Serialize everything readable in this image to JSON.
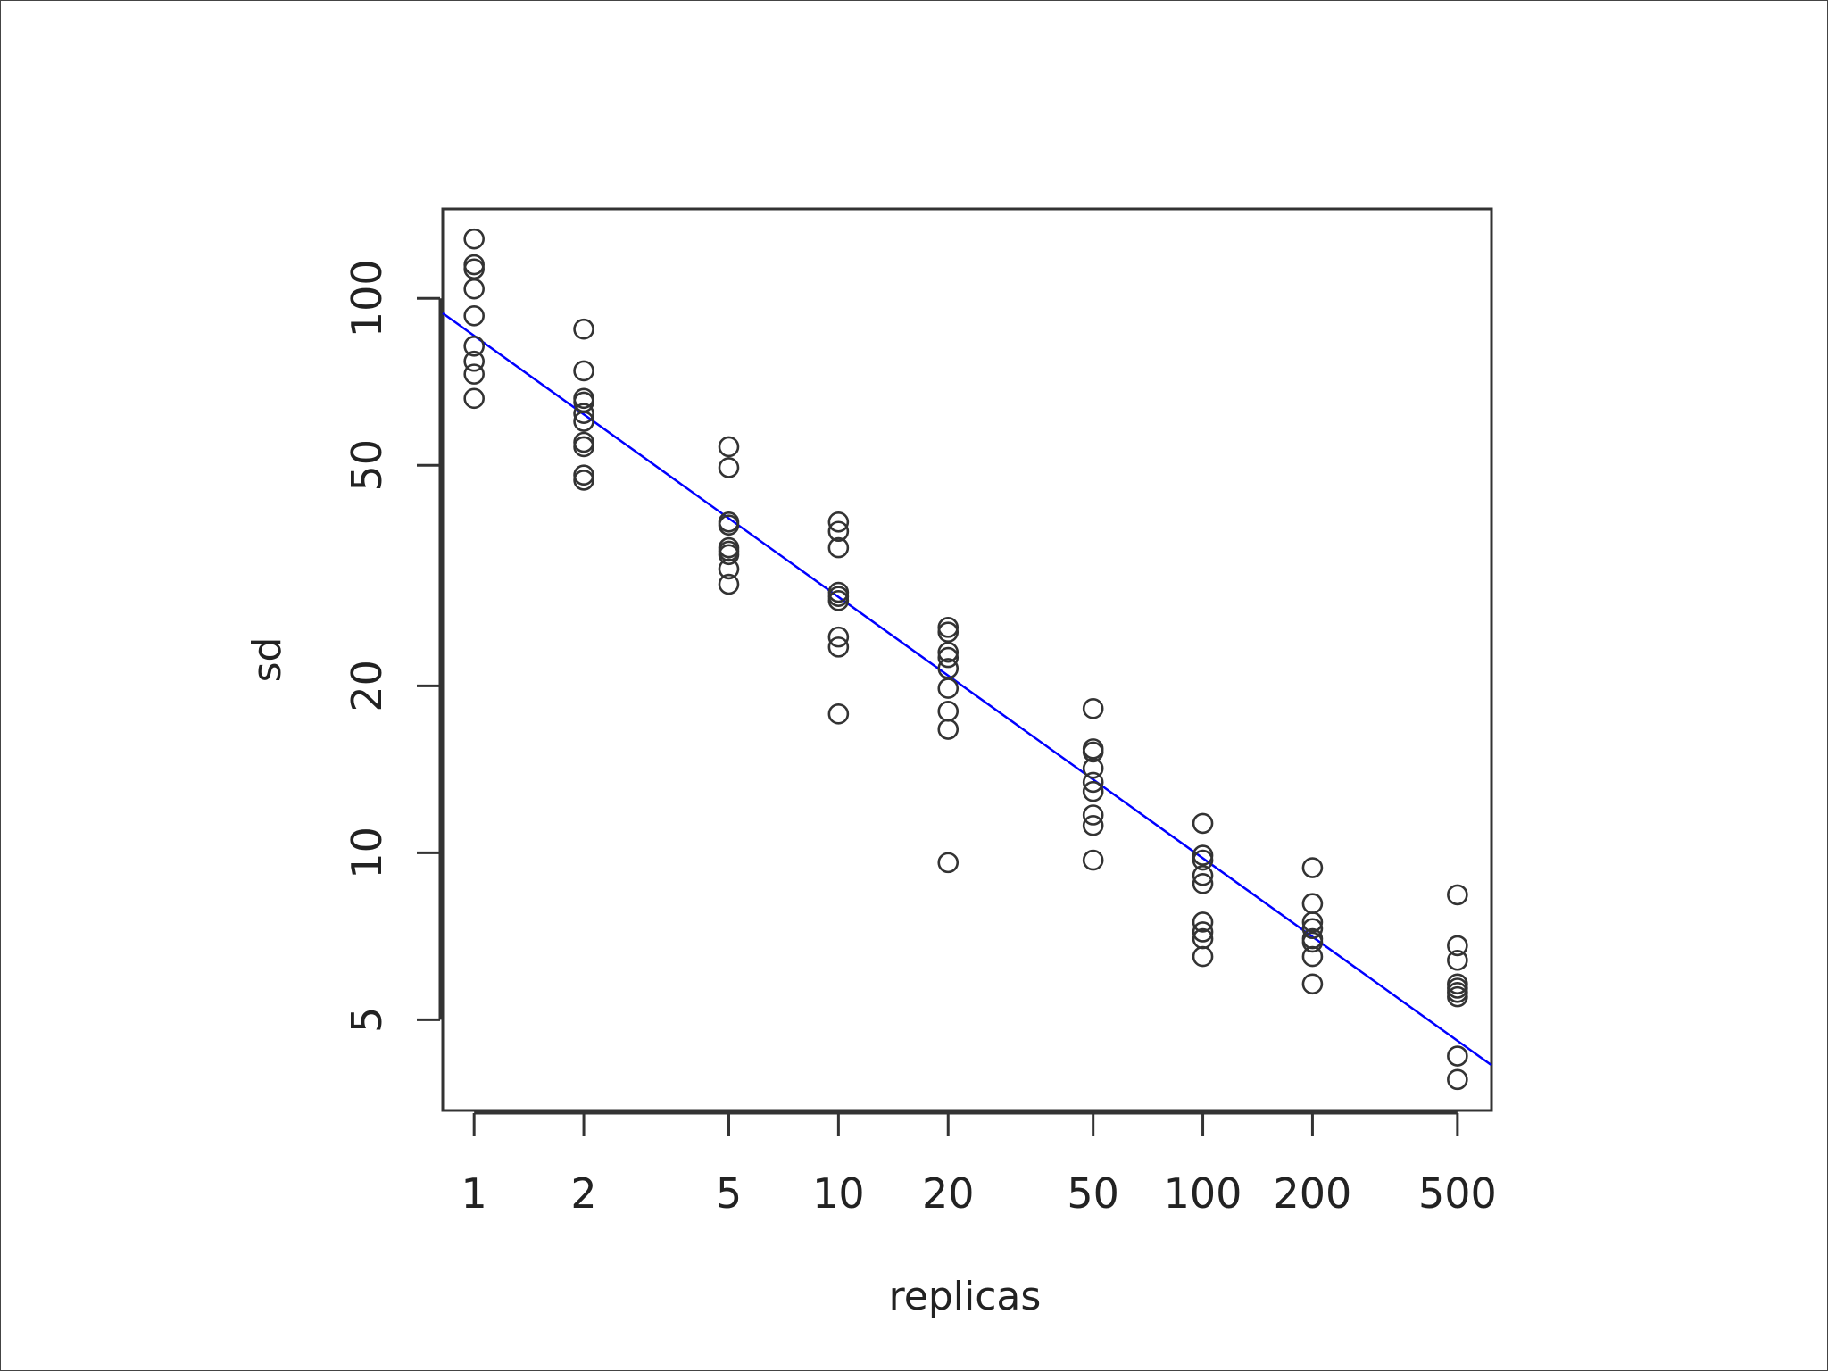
{
  "chart_data": {
    "type": "scatter",
    "title": "",
    "xlabel": "replicas",
    "ylabel": "sd",
    "x_scale": "log",
    "y_scale": "log",
    "xlim": [
      0.82,
      620
    ],
    "ylim": [
      3.43,
      145
    ],
    "grid": false,
    "x_ticks": [
      1,
      2,
      5,
      10,
      20,
      50,
      100,
      200,
      500
    ],
    "y_ticks": [
      5,
      10,
      20,
      50,
      100
    ],
    "colors": {
      "points": "#333333",
      "fit_line": "#0000ff",
      "axis": "#333333"
    },
    "series": [
      {
        "points": [
          [
            1,
            128
          ],
          [
            1,
            115
          ],
          [
            1,
            113
          ],
          [
            1,
            104
          ],
          [
            1,
            93
          ],
          [
            1,
            82
          ],
          [
            1,
            77
          ],
          [
            1,
            73
          ],
          [
            1,
            66
          ],
          [
            2,
            88
          ],
          [
            2,
            74
          ],
          [
            2,
            66
          ],
          [
            2,
            65
          ],
          [
            2,
            62
          ],
          [
            2,
            60
          ],
          [
            2,
            55
          ],
          [
            2,
            54
          ],
          [
            2,
            48
          ],
          [
            2,
            47
          ],
          [
            5,
            54
          ],
          [
            5,
            49.5
          ],
          [
            5,
            39.5
          ],
          [
            5,
            39
          ],
          [
            5,
            35.5
          ],
          [
            5,
            35
          ],
          [
            5,
            34.5
          ],
          [
            5,
            32.5
          ],
          [
            5,
            30.5
          ],
          [
            10,
            39.5
          ],
          [
            10,
            38
          ],
          [
            10,
            35.5
          ],
          [
            10,
            29.5
          ],
          [
            10,
            29
          ],
          [
            10,
            28.5
          ],
          [
            10,
            24.5
          ],
          [
            10,
            23.5
          ],
          [
            10,
            17.8
          ],
          [
            20,
            25.5
          ],
          [
            20,
            25
          ],
          [
            20,
            23
          ],
          [
            20,
            22.5
          ],
          [
            20,
            21.5
          ],
          [
            20,
            19.8
          ],
          [
            20,
            18
          ],
          [
            20,
            16.7
          ],
          [
            20,
            9.6
          ],
          [
            50,
            18.2
          ],
          [
            50,
            15.4
          ],
          [
            50,
            15.2
          ],
          [
            50,
            14.2
          ],
          [
            50,
            13.4
          ],
          [
            50,
            12.9
          ],
          [
            50,
            11.7
          ],
          [
            50,
            11.2
          ],
          [
            50,
            9.7
          ],
          [
            100,
            11.3
          ],
          [
            100,
            9.9
          ],
          [
            100,
            9.7
          ],
          [
            100,
            9.1
          ],
          [
            100,
            8.8
          ],
          [
            100,
            7.5
          ],
          [
            100,
            7.2
          ],
          [
            100,
            7.0
          ],
          [
            100,
            6.5
          ],
          [
            200,
            9.4
          ],
          [
            200,
            8.1
          ],
          [
            200,
            7.5
          ],
          [
            200,
            7.3
          ],
          [
            200,
            7.0
          ],
          [
            200,
            6.9
          ],
          [
            200,
            6.5
          ],
          [
            200,
            5.8
          ],
          [
            500,
            8.4
          ],
          [
            500,
            6.8
          ],
          [
            500,
            6.4
          ],
          [
            500,
            5.8
          ],
          [
            500,
            5.7
          ],
          [
            500,
            5.6
          ],
          [
            500,
            5.5
          ],
          [
            500,
            4.3
          ],
          [
            500,
            3.9
          ]
        ]
      },
      {
        "type": "line",
        "x": [
          0.82,
          620
        ],
        "y": [
          94,
          4.14
        ]
      }
    ]
  }
}
